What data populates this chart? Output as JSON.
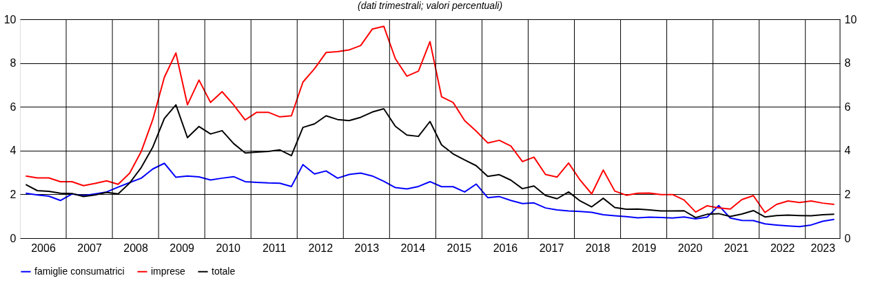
{
  "chart_data": {
    "type": "line",
    "title": "(dati trimestrali; valori percentuali)",
    "x": [
      2006.125,
      2006.375,
      2006.625,
      2006.875,
      2007.125,
      2007.375,
      2007.625,
      2007.875,
      2008.125,
      2008.375,
      2008.625,
      2008.875,
      2009.125,
      2009.375,
      2009.625,
      2009.875,
      2010.125,
      2010.375,
      2010.625,
      2010.875,
      2011.125,
      2011.375,
      2011.625,
      2011.875,
      2012.125,
      2012.375,
      2012.625,
      2012.875,
      2013.125,
      2013.375,
      2013.625,
      2013.875,
      2014.125,
      2014.375,
      2014.625,
      2014.875,
      2015.125,
      2015.375,
      2015.625,
      2015.875,
      2016.125,
      2016.375,
      2016.625,
      2016.875,
      2017.125,
      2017.375,
      2017.625,
      2017.875,
      2018.125,
      2018.375,
      2018.625,
      2018.875,
      2019.125,
      2019.375,
      2019.625,
      2019.875,
      2020.125,
      2020.375,
      2020.625,
      2020.875,
      2021.125,
      2021.375,
      2021.625,
      2021.875,
      2022.125,
      2022.375,
      2022.625,
      2022.875,
      2023.125,
      2023.375,
      2023.625
    ],
    "series": [
      {
        "name": "famiglie consumatrici",
        "color": "#0000ff",
        "values": [
          2.05,
          1.97,
          1.92,
          1.72,
          2.02,
          1.94,
          2.02,
          2.11,
          2.33,
          2.54,
          2.74,
          3.16,
          3.42,
          2.78,
          2.84,
          2.8,
          2.66,
          2.74,
          2.81,
          2.58,
          2.55,
          2.52,
          2.51,
          2.36,
          3.36,
          2.93,
          3.07,
          2.74,
          2.91,
          2.97,
          2.84,
          2.6,
          2.31,
          2.25,
          2.36,
          2.58,
          2.35,
          2.35,
          2.11,
          2.47,
          1.85,
          1.9,
          1.72,
          1.58,
          1.61,
          1.38,
          1.29,
          1.24,
          1.22,
          1.18,
          1.07,
          1.02,
          0.98,
          0.93,
          0.96,
          0.94,
          0.92,
          0.97,
          0.88,
          0.96,
          1.49,
          0.92,
          0.81,
          0.8,
          0.65,
          0.6,
          0.56,
          0.53,
          0.6,
          0.77,
          0.86
        ]
      },
      {
        "name": "imprese",
        "color": "#ff0000",
        "values": [
          2.84,
          2.75,
          2.75,
          2.58,
          2.58,
          2.4,
          2.5,
          2.62,
          2.46,
          2.97,
          3.96,
          5.42,
          7.35,
          8.46,
          6.09,
          7.22,
          6.2,
          6.69,
          6.09,
          5.4,
          5.75,
          5.75,
          5.54,
          5.59,
          7.13,
          7.74,
          8.48,
          8.52,
          8.6,
          8.8,
          9.55,
          9.68,
          8.2,
          7.4,
          7.63,
          8.98,
          6.46,
          6.2,
          5.37,
          4.89,
          4.35,
          4.47,
          4.21,
          3.5,
          3.7,
          2.91,
          2.79,
          3.43,
          2.65,
          2.02,
          3.11,
          2.15,
          1.96,
          2.05,
          2.06,
          1.99,
          1.99,
          1.74,
          1.19,
          1.48,
          1.38,
          1.33,
          1.76,
          1.94,
          1.17,
          1.54,
          1.7,
          1.63,
          1.7,
          1.6,
          1.54
        ]
      },
      {
        "name": "totale",
        "color": "#000000",
        "values": [
          2.45,
          2.17,
          2.14,
          2.05,
          2.04,
          1.9,
          1.97,
          2.09,
          2.02,
          2.52,
          3.23,
          4.16,
          5.47,
          6.09,
          4.59,
          5.1,
          4.76,
          4.91,
          4.32,
          3.89,
          3.93,
          3.96,
          4.03,
          3.77,
          5.06,
          5.22,
          5.59,
          5.42,
          5.37,
          5.52,
          5.76,
          5.91,
          5.11,
          4.71,
          4.65,
          5.33,
          4.26,
          3.85,
          3.57,
          3.31,
          2.82,
          2.9,
          2.65,
          2.26,
          2.38,
          1.95,
          1.8,
          2.11,
          1.7,
          1.43,
          1.82,
          1.4,
          1.32,
          1.33,
          1.29,
          1.24,
          1.24,
          1.25,
          0.94,
          1.09,
          1.12,
          0.99,
          1.1,
          1.26,
          0.97,
          1.03,
          1.05,
          1.03,
          1.02,
          1.07,
          1.09
        ]
      }
    ],
    "xlim": [
      2006,
      2023.75
    ],
    "xticks": [
      {
        "value": 2006.5,
        "label": "2006"
      },
      {
        "value": 2007,
        "label": null
      },
      {
        "value": 2007.5,
        "label": "2007"
      },
      {
        "value": 2008,
        "label": null
      },
      {
        "value": 2008.5,
        "label": "2008"
      },
      {
        "value": 2009,
        "label": null
      },
      {
        "value": 2009.5,
        "label": "2009"
      },
      {
        "value": 2010,
        "label": null
      },
      {
        "value": 2010.5,
        "label": "2010"
      },
      {
        "value": 2011,
        "label": null
      },
      {
        "value": 2011.5,
        "label": "2011"
      },
      {
        "value": 2012,
        "label": null
      },
      {
        "value": 2012.5,
        "label": "2012"
      },
      {
        "value": 2013,
        "label": null
      },
      {
        "value": 2013.5,
        "label": "2013"
      },
      {
        "value": 2014,
        "label": null
      },
      {
        "value": 2014.5,
        "label": "2014"
      },
      {
        "value": 2015,
        "label": null
      },
      {
        "value": 2015.5,
        "label": "2015"
      },
      {
        "value": 2016,
        "label": null
      },
      {
        "value": 2016.5,
        "label": "2016"
      },
      {
        "value": 2017,
        "label": null
      },
      {
        "value": 2017.5,
        "label": "2017"
      },
      {
        "value": 2018,
        "label": null
      },
      {
        "value": 2018.5,
        "label": "2018"
      },
      {
        "value": 2019,
        "label": null
      },
      {
        "value": 2019.5,
        "label": "2019"
      },
      {
        "value": 2020,
        "label": null
      },
      {
        "value": 2020.5,
        "label": "2020"
      },
      {
        "value": 2021,
        "label": null
      },
      {
        "value": 2021.5,
        "label": "2021"
      },
      {
        "value": 2022,
        "label": null
      },
      {
        "value": 2022.5,
        "label": "2022"
      },
      {
        "value": 2023,
        "label": null
      },
      {
        "value": 2023.375,
        "label": "2023"
      }
    ],
    "ylim": [
      0,
      10
    ],
    "yticks": [
      0,
      2,
      4,
      6,
      8,
      10
    ],
    "y2lim": [
      0,
      10
    ],
    "y2ticks": [
      0,
      2,
      4,
      6,
      8,
      10
    ],
    "grid": true,
    "legend": "bottom left",
    "line_style": "solid",
    "marker": "none"
  }
}
